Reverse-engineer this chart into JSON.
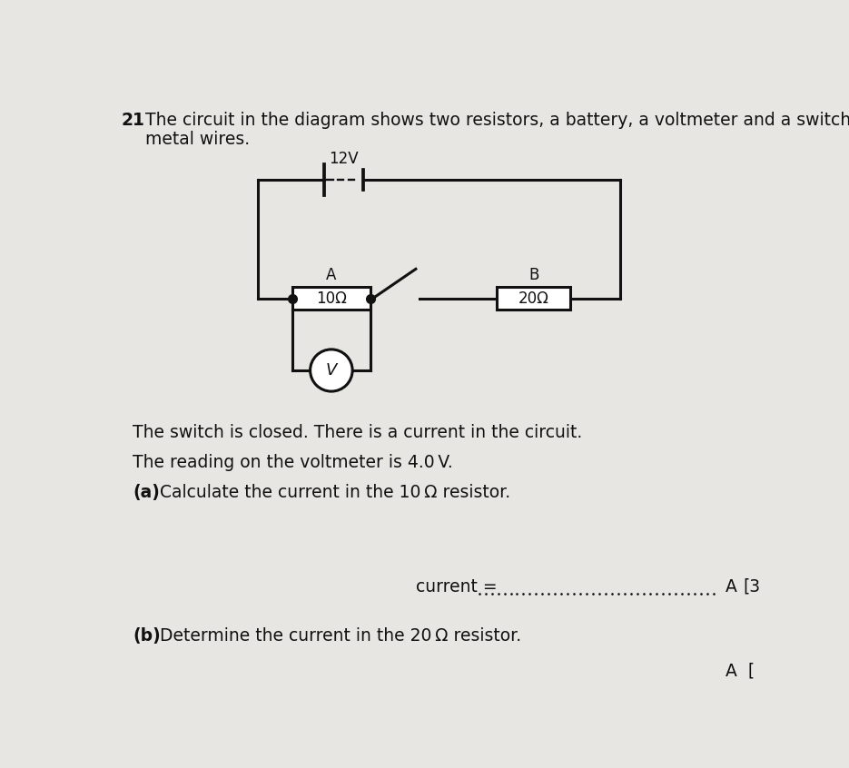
{
  "background_color": "#e8e6e3",
  "question_number": "21",
  "intro_line1": "The circuit in the diagram shows two resistors, a battery, a voltmeter and a switch connected by",
  "intro_line2": "metal wires.",
  "battery_label": "12V",
  "resistor1_label": "10Ω",
  "resistor2_label": "20Ω",
  "node_A_label": "A",
  "node_B_label": "B",
  "voltmeter_label": "V",
  "switch_closed_text": "The switch is closed. There is a current in the circuit.",
  "voltmeter_text": "The reading on the voltmeter is 4.0 V.",
  "part_a_bold": "(a)",
  "part_a_rest": "  Calculate the current in the 10 Ω resistor.",
  "part_b_bold": "(b)",
  "part_b_rest": "  Determine the current in the 20 Ω resistor.",
  "current_label": "current = ",
  "answer_A_label": "A",
  "marks_label": "[3",
  "line_color": "#111111",
  "text_color": "#111111",
  "font_size_body": 13.5,
  "font_size_circuit": 12
}
